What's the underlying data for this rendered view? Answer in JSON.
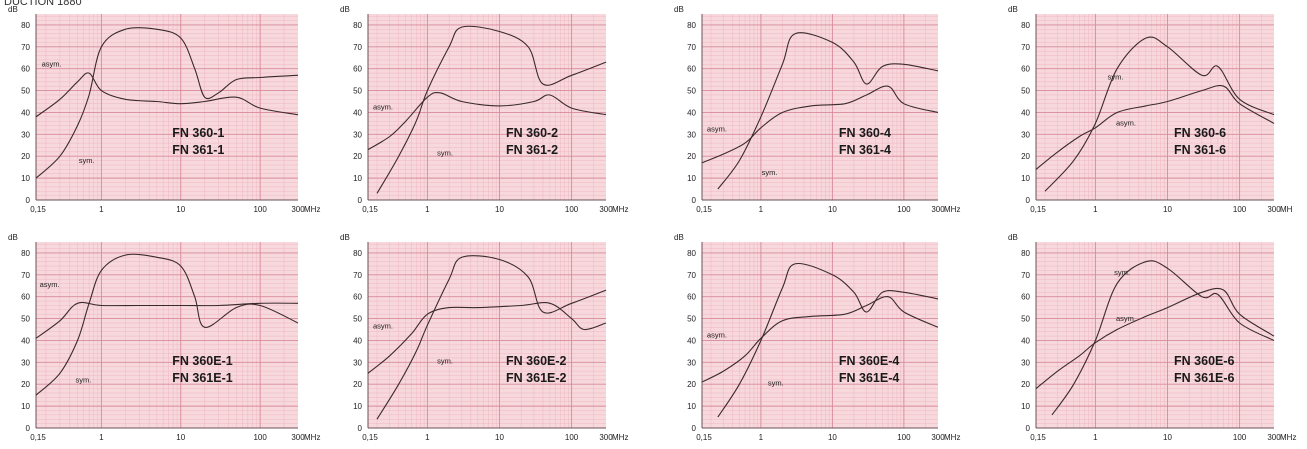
{
  "page": {
    "title_fragment": "DUCTION 1880"
  },
  "style": {
    "background": "#f7d8dd",
    "grid_minor": "#efb7c1",
    "grid_major": "#d78a99",
    "curve": "#3a2a2c",
    "text": "#222222"
  },
  "chart_data": [
    {
      "type": "line",
      "title": "",
      "xlabel": "",
      "ylabel": "dB",
      "scale_x": "log",
      "xlim": [
        0.15,
        300
      ],
      "ylim": [
        0,
        85
      ],
      "x_tick_labels": [
        "0,15",
        "1",
        "10",
        "100",
        "300",
        "MHz"
      ],
      "y_tick_labels": [
        "0",
        "10",
        "20",
        "30",
        "40",
        "50",
        "60",
        "70",
        "80"
      ],
      "labels": [
        "FN 360-1",
        "FN 361-1"
      ],
      "annotations": [
        {
          "text": "asym.",
          "x": 0.25,
          "y": 60
        },
        {
          "text": "sym.",
          "x": 0.55,
          "y": 27
        }
      ],
      "series": [
        {
          "name": "asym.",
          "x": [
            0.15,
            0.3,
            0.5,
            0.7,
            1,
            2,
            5,
            10,
            20,
            50,
            100,
            300
          ],
          "y": [
            38,
            46,
            54,
            58,
            50,
            46,
            45,
            44,
            45,
            47,
            42,
            39
          ]
        },
        {
          "name": "sym.",
          "x": [
            0.15,
            0.3,
            0.5,
            0.7,
            1,
            2,
            5,
            10,
            15,
            20,
            30,
            50,
            100,
            300
          ],
          "y": [
            10,
            20,
            34,
            48,
            70,
            78,
            78,
            74,
            60,
            47,
            49,
            55,
            56,
            57
          ]
        }
      ]
    },
    {
      "type": "line",
      "title": "",
      "xlabel": "",
      "ylabel": "dB",
      "scale_x": "log",
      "xlim": [
        0.15,
        300
      ],
      "ylim": [
        0,
        85
      ],
      "x_tick_labels": [
        "0,15",
        "1",
        "10",
        "100",
        "300",
        "MHz"
      ],
      "y_tick_labels": [
        "0",
        "10",
        "20",
        "30",
        "40",
        "50",
        "60",
        "70",
        "80"
      ],
      "labels": [
        "FN 360-2",
        "FN 361-2"
      ],
      "annotations": [
        {
          "text": "asym.",
          "x": 0.2,
          "y": 40
        },
        {
          "text": "sym.",
          "x": 1.2,
          "y": 25
        }
      ],
      "series": [
        {
          "name": "asym.",
          "x": [
            0.15,
            0.3,
            0.5,
            1,
            1.5,
            3,
            10,
            30,
            50,
            100,
            300
          ],
          "y": [
            23,
            29,
            36,
            47,
            49,
            45,
            43,
            45,
            48,
            42,
            39
          ]
        },
        {
          "name": "sym.",
          "x": [
            0.2,
            0.4,
            0.7,
            1,
            2,
            3,
            10,
            25,
            40,
            100,
            300
          ],
          "y": [
            3,
            20,
            36,
            50,
            70,
            79,
            77,
            70,
            53,
            57,
            63
          ]
        }
      ]
    },
    {
      "type": "line",
      "title": "",
      "xlabel": "",
      "ylabel": "dB",
      "scale_x": "log",
      "xlim": [
        0.15,
        300
      ],
      "ylim": [
        0,
        85
      ],
      "x_tick_labels": [
        "0,15",
        "1",
        "10",
        "100",
        "300",
        "MHz"
      ],
      "y_tick_labels": [
        "0",
        "10",
        "20",
        "30",
        "40",
        "50",
        "60",
        "70",
        "80"
      ],
      "labels": [
        "FN 360-4",
        "FN 361-4"
      ],
      "annotations": [
        {
          "text": "asym.",
          "x": 0.2,
          "y": 30
        },
        {
          "text": "sym.",
          "x": 0.9,
          "y": 16
        }
      ],
      "series": [
        {
          "name": "asym.",
          "x": [
            0.15,
            0.3,
            0.6,
            1,
            2,
            5,
            15,
            30,
            60,
            100,
            300
          ],
          "y": [
            17,
            21,
            26,
            33,
            40,
            43,
            44,
            48,
            52,
            44,
            40
          ]
        },
        {
          "name": "sym.",
          "x": [
            0.25,
            0.5,
            1,
            2,
            3,
            10,
            20,
            30,
            50,
            100,
            300
          ],
          "y": [
            5,
            18,
            38,
            62,
            76,
            72,
            63,
            53,
            61,
            62,
            59
          ]
        }
      ]
    },
    {
      "type": "line",
      "title": "",
      "xlabel": "",
      "ylabel": "dB",
      "scale_x": "log",
      "xlim": [
        0.15,
        300
      ],
      "ylim": [
        0,
        85
      ],
      "x_tick_labels": [
        "0,15",
        "1",
        "10",
        "100",
        "300",
        "MH"
      ],
      "y_tick_labels": [
        "0",
        "10",
        "20",
        "30",
        "40",
        "50",
        "60",
        "70",
        "80"
      ],
      "labels": [
        "FN 360-6",
        "FN 361-6"
      ],
      "annotations": [
        {
          "text": "sym.",
          "x": 1.3,
          "y": 55
        },
        {
          "text": "asym.",
          "x": 1.7,
          "y": 34
        }
      ],
      "series": [
        {
          "name": "sym.",
          "x": [
            0.2,
            0.5,
            1,
            2,
            5,
            10,
            30,
            50,
            100,
            300
          ],
          "y": [
            4,
            18,
            35,
            60,
            74,
            70,
            57,
            61,
            46,
            39
          ]
        },
        {
          "name": "asym.",
          "x": [
            0.15,
            0.3,
            0.6,
            1,
            2,
            5,
            10,
            30,
            60,
            100,
            300
          ],
          "y": [
            14,
            22,
            29,
            33,
            40,
            43,
            45,
            50,
            52,
            44,
            35
          ]
        }
      ]
    },
    {
      "type": "line",
      "title": "",
      "xlabel": "",
      "ylabel": "dB",
      "scale_x": "log",
      "xlim": [
        0.15,
        300
      ],
      "ylim": [
        0,
        85
      ],
      "x_tick_labels": [
        "0,15",
        "1",
        "10",
        "100",
        "300",
        "MHz"
      ],
      "y_tick_labels": [
        "0",
        "10",
        "20",
        "30",
        "40",
        "50",
        "60",
        "70",
        "80"
      ],
      "labels": [
        "FN 360E-1",
        "FN 361E-1"
      ],
      "annotations": [
        {
          "text": "asym.",
          "x": 0.25,
          "y": 63
        },
        {
          "text": "sym.",
          "x": 0.5,
          "y": 30
        }
      ],
      "series": [
        {
          "name": "asym.",
          "x": [
            0.15,
            0.3,
            0.5,
            1,
            3,
            10,
            30,
            100,
            300
          ],
          "y": [
            41,
            49,
            57,
            56,
            56,
            56,
            56,
            57,
            57
          ]
        },
        {
          "name": "sym.",
          "x": [
            0.15,
            0.3,
            0.5,
            0.7,
            1,
            2,
            5,
            10,
            15,
            20,
            50,
            100,
            300
          ],
          "y": [
            15,
            25,
            40,
            57,
            72,
            79,
            78,
            74,
            60,
            46,
            55,
            56,
            48
          ]
        }
      ]
    },
    {
      "type": "line",
      "title": "",
      "xlabel": "",
      "ylabel": "dB",
      "scale_x": "log",
      "xlim": [
        0.15,
        300
      ],
      "ylim": [
        0,
        85
      ],
      "x_tick_labels": [
        "0,15",
        "1",
        "10",
        "100",
        "300",
        "MHz"
      ],
      "y_tick_labels": [
        "0",
        "10",
        "20",
        "30",
        "40",
        "50",
        "60",
        "70",
        "80"
      ],
      "labels": [
        "FN 360E-2",
        "FN 361E-2"
      ],
      "annotations": [
        {
          "text": "asym.",
          "x": 0.2,
          "y": 44
        },
        {
          "text": "sym.",
          "x": 1.2,
          "y": 34
        }
      ],
      "series": [
        {
          "name": "asym.",
          "x": [
            0.15,
            0.3,
            0.6,
            1,
            2,
            5,
            20,
            50,
            100,
            150,
            300
          ],
          "y": [
            25,
            33,
            43,
            52,
            55,
            55,
            56,
            57,
            50,
            45,
            48
          ]
        },
        {
          "name": "sym.",
          "x": [
            0.2,
            0.4,
            0.7,
            1,
            2,
            3,
            10,
            25,
            40,
            100,
            300
          ],
          "y": [
            4,
            20,
            35,
            47,
            68,
            78,
            77,
            69,
            53,
            57,
            63
          ]
        }
      ]
    },
    {
      "type": "line",
      "title": "",
      "xlabel": "",
      "ylabel": "dB",
      "scale_x": "log",
      "xlim": [
        0.15,
        300
      ],
      "ylim": [
        0,
        85
      ],
      "x_tick_labels": [
        "0,15",
        "1",
        "10",
        "100",
        "300",
        "MHz"
      ],
      "y_tick_labels": [
        "0",
        "10",
        "20",
        "30",
        "40",
        "50",
        "60",
        "70",
        "80"
      ],
      "labels": [
        "FN 360E-4",
        "FN 361E-4"
      ],
      "annotations": [
        {
          "text": "asym.",
          "x": 0.2,
          "y": 40
        },
        {
          "text": "sym.",
          "x": 1.1,
          "y": 24
        }
      ],
      "series": [
        {
          "name": "asym.",
          "x": [
            0.15,
            0.3,
            0.6,
            1,
            2,
            5,
            15,
            30,
            60,
            100,
            300
          ],
          "y": [
            21,
            26,
            33,
            41,
            49,
            51,
            52,
            56,
            60,
            53,
            46
          ]
        },
        {
          "name": "sym.",
          "x": [
            0.25,
            0.5,
            1,
            2,
            3,
            10,
            20,
            30,
            50,
            100,
            300
          ],
          "y": [
            5,
            20,
            40,
            64,
            75,
            70,
            62,
            53,
            62,
            62,
            59
          ]
        }
      ]
    },
    {
      "type": "line",
      "title": "",
      "xlabel": "",
      "ylabel": "dB",
      "scale_x": "log",
      "xlim": [
        0.15,
        300
      ],
      "ylim": [
        0,
        85
      ],
      "x_tick_labels": [
        "0,15",
        "1",
        "10",
        "100",
        "300",
        "MHz"
      ],
      "y_tick_labels": [
        "0",
        "10",
        "20",
        "30",
        "40",
        "50",
        "60",
        "70",
        "80"
      ],
      "labels": [
        "FN 360E-6",
        "FN 361E-6"
      ],
      "annotations": [
        {
          "text": "sym.",
          "x": 1.6,
          "y": 70
        },
        {
          "text": "asym.",
          "x": 1.7,
          "y": 49
        }
      ],
      "series": [
        {
          "name": "sym.",
          "x": [
            0.25,
            0.5,
            1,
            2,
            5,
            10,
            30,
            50,
            100,
            300
          ],
          "y": [
            6,
            20,
            40,
            66,
            76,
            73,
            60,
            61,
            48,
            40
          ]
        },
        {
          "name": "asym.",
          "x": [
            0.15,
            0.3,
            0.6,
            1,
            2,
            5,
            10,
            30,
            60,
            100,
            300
          ],
          "y": [
            18,
            26,
            33,
            39,
            45,
            51,
            55,
            62,
            63,
            52,
            42
          ]
        }
      ]
    }
  ]
}
